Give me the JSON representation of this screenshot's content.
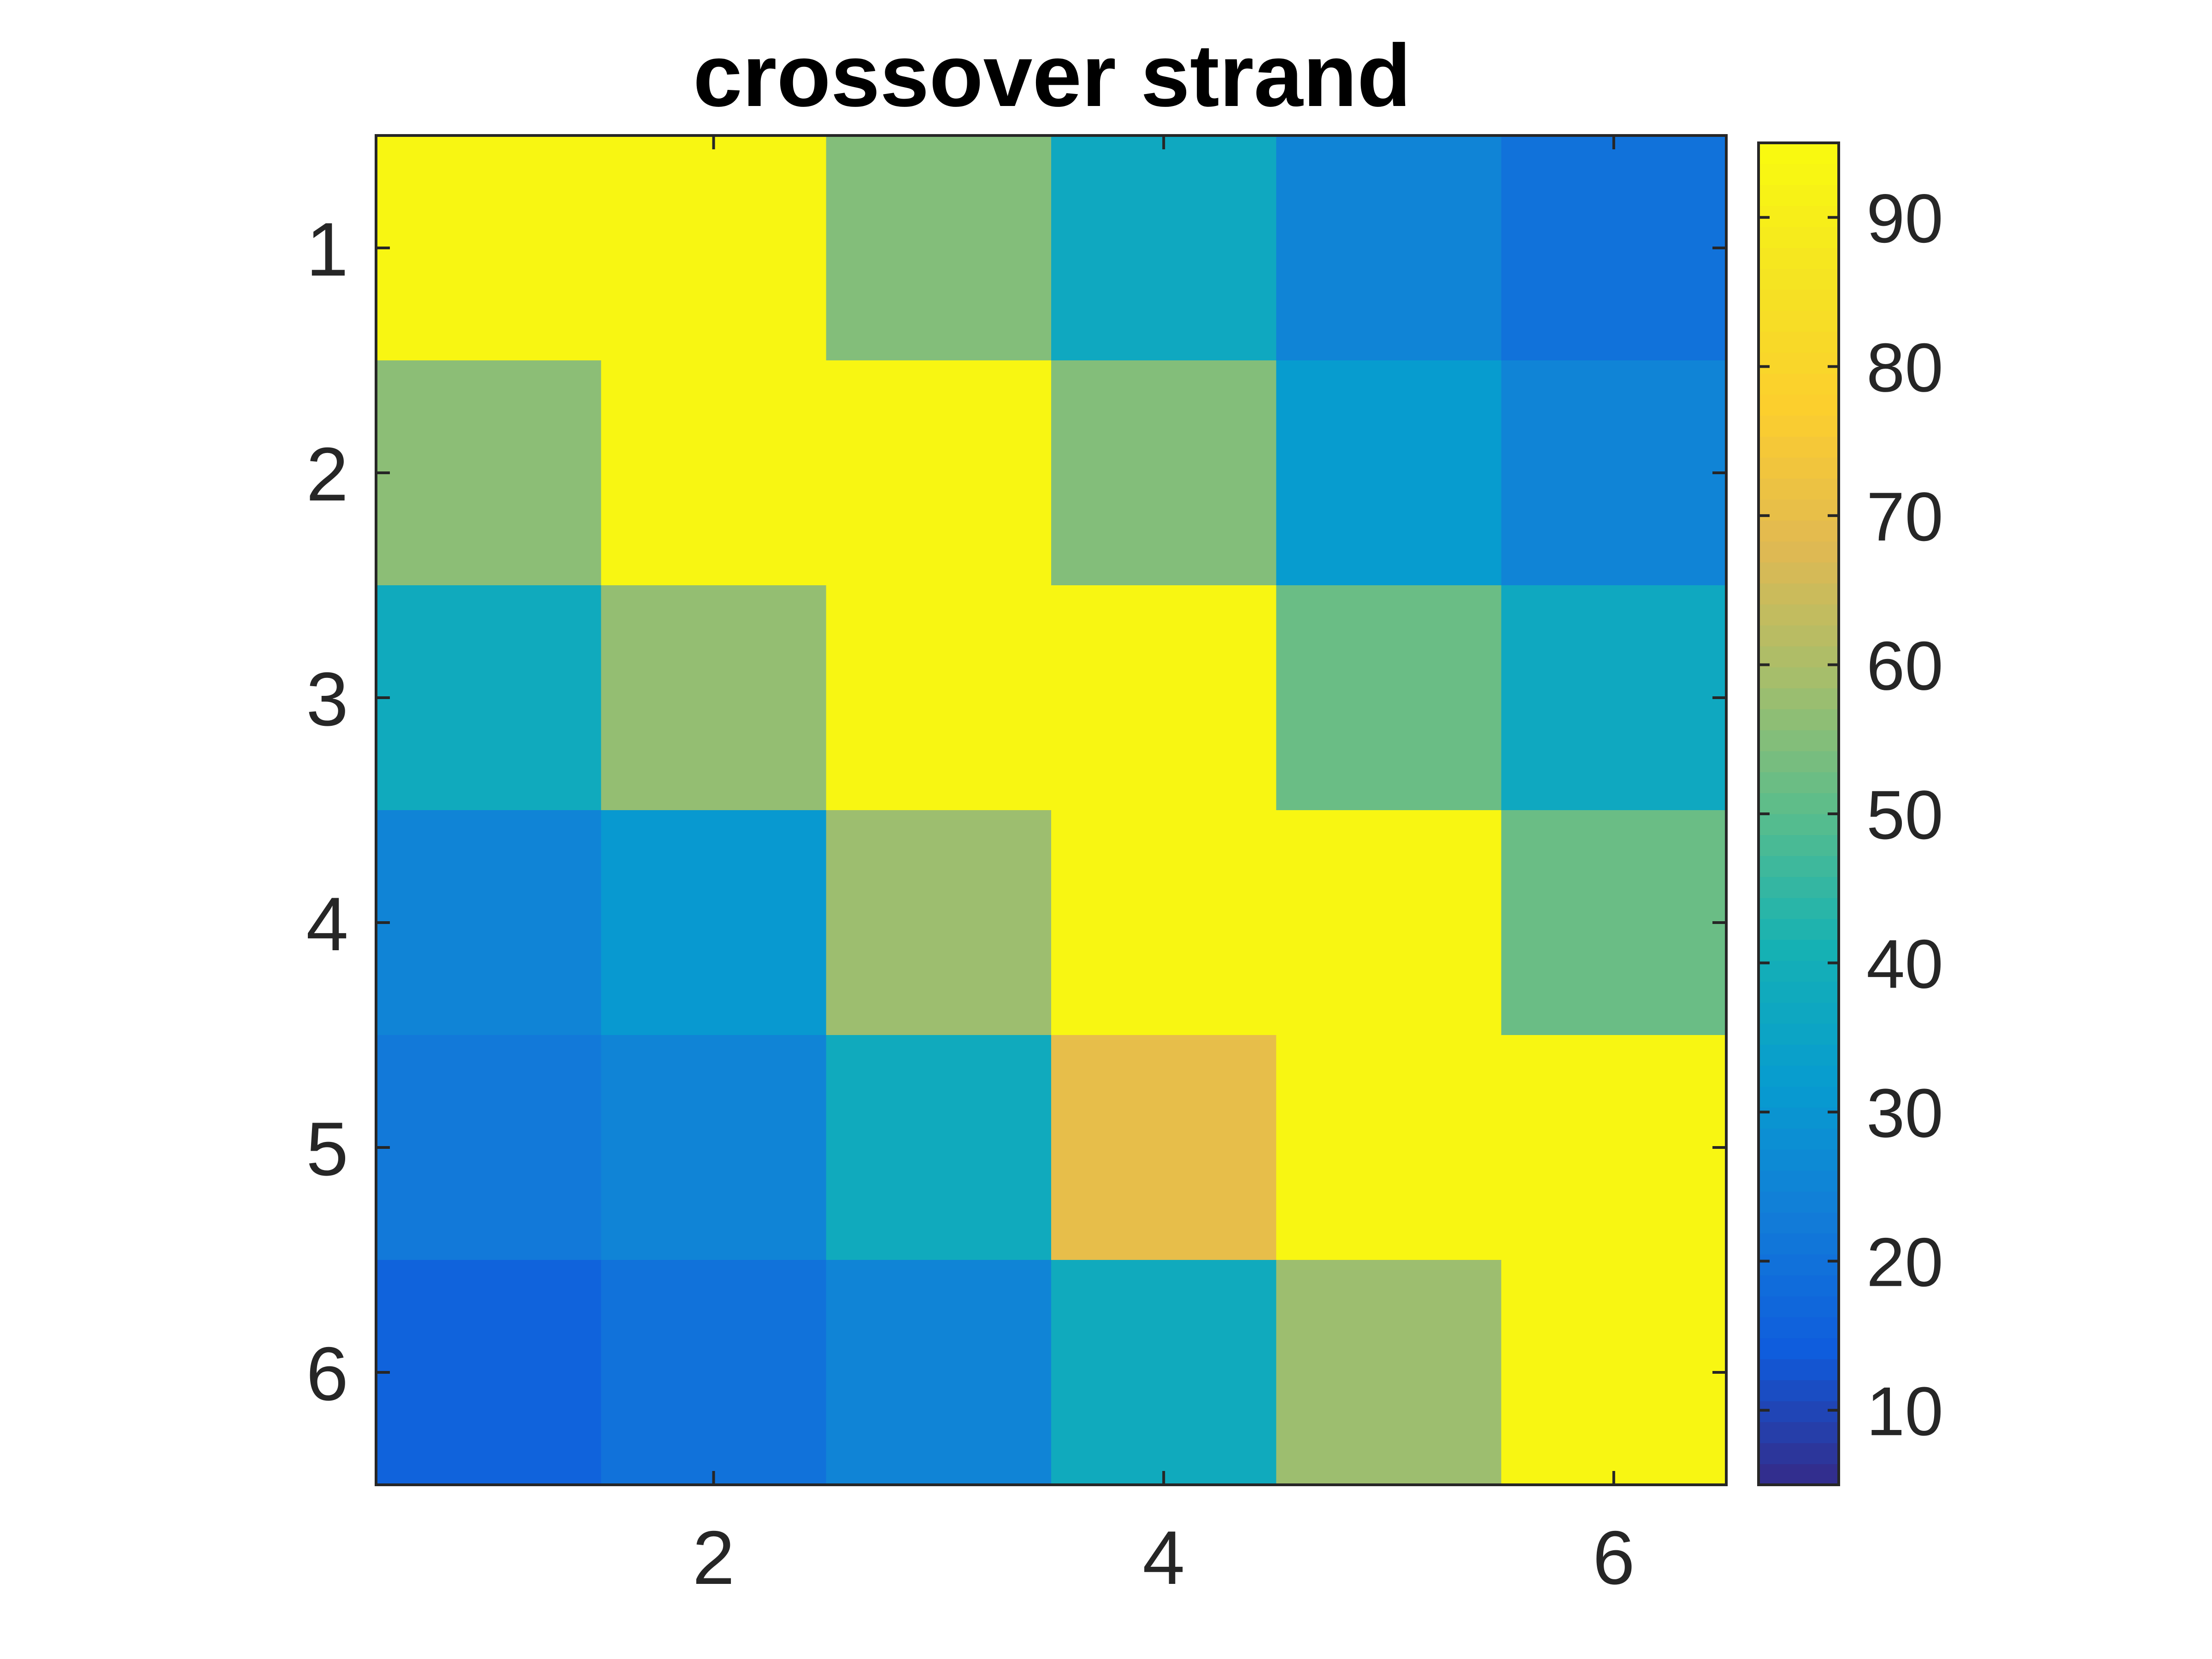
{
  "chart_data": {
    "type": "heatmap",
    "title": "crossover strand",
    "xlabel": "",
    "ylabel": "",
    "x": [
      1,
      2,
      3,
      4,
      5,
      6
    ],
    "y": [
      1,
      2,
      3,
      4,
      5,
      6
    ],
    "x_ticks": [
      "2",
      "4",
      "6"
    ],
    "x_tick_values": [
      2,
      4,
      6
    ],
    "y_ticks": [
      "1",
      "2",
      "3",
      "4",
      "5",
      "6"
    ],
    "y_tick_values": [
      1,
      2,
      3,
      4,
      5,
      6
    ],
    "values": [
      [
        93,
        93,
        55,
        37,
        25,
        20
      ],
      [
        56,
        93,
        93,
        55,
        32,
        25
      ],
      [
        38,
        57,
        93,
        93,
        52,
        37
      ],
      [
        25,
        31,
        58,
        93,
        93,
        52
      ],
      [
        22,
        25,
        38,
        70,
        93,
        93
      ],
      [
        16,
        20,
        25,
        38,
        58,
        93
      ]
    ],
    "colorbar": {
      "range": [
        5,
        95
      ],
      "ticks": [
        10,
        20,
        30,
        40,
        50,
        60,
        70,
        80,
        90
      ],
      "tick_labels": [
        "10",
        "20",
        "30",
        "40",
        "50",
        "60",
        "70",
        "80",
        "90"
      ],
      "colormap": "parula"
    },
    "grid": false
  }
}
